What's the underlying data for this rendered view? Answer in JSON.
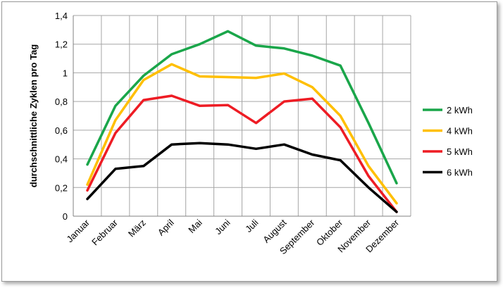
{
  "chart_data": {
    "type": "line",
    "title": "",
    "xlabel": "",
    "ylabel": "durchschnittliche  Zyklen  pro Tag",
    "categories": [
      "Januar",
      "Februar",
      "März",
      "April",
      "Mai",
      "Juni",
      "Juli",
      "August",
      "September",
      "Oktober",
      "November",
      "Dezember"
    ],
    "ylim": [
      0,
      1.4
    ],
    "yticks": [
      "0",
      "0,2",
      "0,4",
      "0,6",
      "0,8",
      "1",
      "1,2",
      "1,4"
    ],
    "grid": true,
    "legend_position": "right",
    "series": [
      {
        "name": "2 kWh",
        "color": "#1aa64a",
        "values": [
          0.36,
          0.77,
          0.98,
          1.13,
          1.2,
          1.29,
          1.19,
          1.17,
          1.12,
          1.05,
          0.65,
          0.23
        ]
      },
      {
        "name": "4 kWh",
        "color": "#ffbf00",
        "values": [
          0.22,
          0.67,
          0.95,
          1.06,
          0.975,
          0.97,
          0.965,
          0.995,
          0.9,
          0.7,
          0.35,
          0.09
        ]
      },
      {
        "name": "5 kWh",
        "color": "#ee1c24",
        "values": [
          0.18,
          0.58,
          0.81,
          0.84,
          0.77,
          0.775,
          0.65,
          0.8,
          0.82,
          0.62,
          0.28,
          0.03
        ]
      },
      {
        "name": "6 kWh",
        "color": "#000000",
        "values": [
          0.12,
          0.33,
          0.35,
          0.5,
          0.51,
          0.5,
          0.47,
          0.5,
          0.43,
          0.39,
          0.2,
          0.03
        ]
      }
    ]
  }
}
